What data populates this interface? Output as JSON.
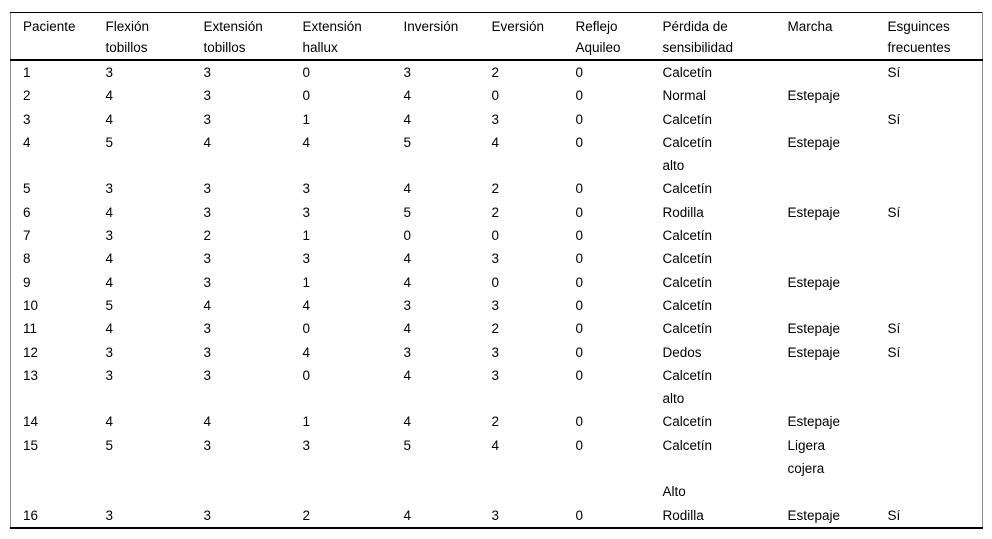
{
  "table": {
    "columns": [
      {
        "key": "paciente",
        "label": "Paciente"
      },
      {
        "key": "flexion-tobillos",
        "label": "Flexión\ntobillos"
      },
      {
        "key": "extension-tobillos",
        "label": "Extensión\ntobillos"
      },
      {
        "key": "extension-hallux",
        "label": "Extensión\nhallux"
      },
      {
        "key": "inversion",
        "label": "Inversión"
      },
      {
        "key": "eversion",
        "label": "Eversión"
      },
      {
        "key": "reflejo-aquileo",
        "label": "Reflejo\nAquileo"
      },
      {
        "key": "perdida-sensibilidad",
        "label": "Pérdida de\nsensibilidad"
      },
      {
        "key": "marcha",
        "label": "Marcha"
      },
      {
        "key": "esguinces-frecuentes",
        "label": "Esguinces\nfrecuentes"
      }
    ],
    "rows": [
      [
        "1",
        "3",
        "3",
        "0",
        "3",
        "2",
        "0",
        "Calcetín",
        "",
        "Sí"
      ],
      [
        "2",
        "4",
        "3",
        "0",
        "4",
        "0",
        "0",
        "Normal",
        "Estepaje",
        ""
      ],
      [
        "3",
        "4",
        "3",
        "1",
        "4",
        "3",
        "0",
        "Calcetín",
        "",
        "Sí"
      ],
      [
        "4",
        "5",
        "4",
        "4",
        "5",
        "4",
        "0",
        "Calcetín\nalto",
        "Estepaje",
        ""
      ],
      [
        "5",
        "3",
        "3",
        "3",
        "4",
        "2",
        "0",
        "Calcetín",
        "",
        ""
      ],
      [
        "6",
        "4",
        "3",
        "3",
        "5",
        "2",
        "0",
        "Rodilla",
        "Estepaje",
        "Sí"
      ],
      [
        "7",
        "3",
        "2",
        "1",
        "0",
        "0",
        "0",
        "Calcetín",
        "",
        ""
      ],
      [
        "8",
        "4",
        "3",
        "3",
        "4",
        "3",
        "0",
        "Calcetín",
        "",
        ""
      ],
      [
        "9",
        "4",
        "3",
        "1",
        "4",
        "0",
        "0",
        "Calcetín",
        "Estepaje",
        ""
      ],
      [
        "10",
        "5",
        "4",
        "4",
        "3",
        "3",
        "0",
        "Calcetín",
        "",
        ""
      ],
      [
        "11",
        "4",
        "3",
        "0",
        "4",
        "2",
        "0",
        "Calcetín",
        "Estepaje",
        "Sí"
      ],
      [
        "12",
        "3",
        "3",
        "4",
        "3",
        "3",
        "0",
        "Dedos",
        "Estepaje",
        "Sí"
      ],
      [
        "13",
        "3",
        "3",
        "0",
        "4",
        "3",
        "0",
        "Calcetín\nalto",
        "",
        ""
      ],
      [
        "14",
        "4",
        "4",
        "1",
        "4",
        "2",
        "0",
        "Calcetín",
        "Estepaje",
        ""
      ],
      [
        "15",
        "5",
        "3",
        "3",
        "5",
        "4",
        "0",
        "Calcetín\n\nAlto",
        "Ligera\ncojera",
        ""
      ],
      [
        "16",
        "3",
        "3",
        "2",
        "4",
        "3",
        "0",
        "Rodilla",
        "Estepaje",
        "Sí"
      ]
    ],
    "text_color": "#000000",
    "rule_color": "#000000",
    "side_rule_color": "#8f8f8f"
  }
}
